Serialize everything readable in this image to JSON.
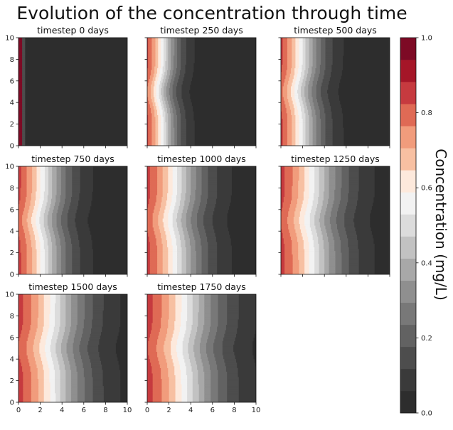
{
  "chart_data": {
    "type": "heatmap",
    "title": "Evolution of the concentration through time",
    "colorbar": {
      "label": "Concentration (mg/L)",
      "range": [
        0,
        1
      ],
      "ticks": [
        "0.0",
        "0.2",
        "0.4",
        "0.6",
        "0.8",
        "1.0"
      ],
      "levels": 15
    },
    "x_ticks": [
      "0",
      "2",
      "4",
      "6",
      "8",
      "10"
    ],
    "y_ticks": [
      "0",
      "2",
      "4",
      "6",
      "8",
      "10"
    ],
    "xlim": [
      0,
      10
    ],
    "ylim": [
      0,
      10
    ],
    "panels": [
      {
        "title": "timestep 0 days",
        "days": 0
      },
      {
        "title": "timestep 250 days",
        "days": 250
      },
      {
        "title": "timestep 500 days",
        "days": 500
      },
      {
        "title": "timestep 750 days",
        "days": 750
      },
      {
        "title": "timestep 1000 days",
        "days": 1000
      },
      {
        "title": "timestep 1250 days",
        "days": 1250
      },
      {
        "title": "timestep 1500 days",
        "days": 1500
      },
      {
        "title": "timestep 1750 days",
        "days": 1750
      }
    ],
    "colormap": [
      "#2d2d2d",
      "#3a3a3a",
      "#4d4d4d",
      "#626262",
      "#787878",
      "#8f8f8f",
      "#a8a8a8",
      "#c2c2c2",
      "#dcdcdc",
      "#f2f2f2",
      "#fde9dc",
      "#f7c0a2",
      "#f19c7c",
      "#df6a55",
      "#c63a3f",
      "#a51628",
      "#7d0a25"
    ]
  }
}
